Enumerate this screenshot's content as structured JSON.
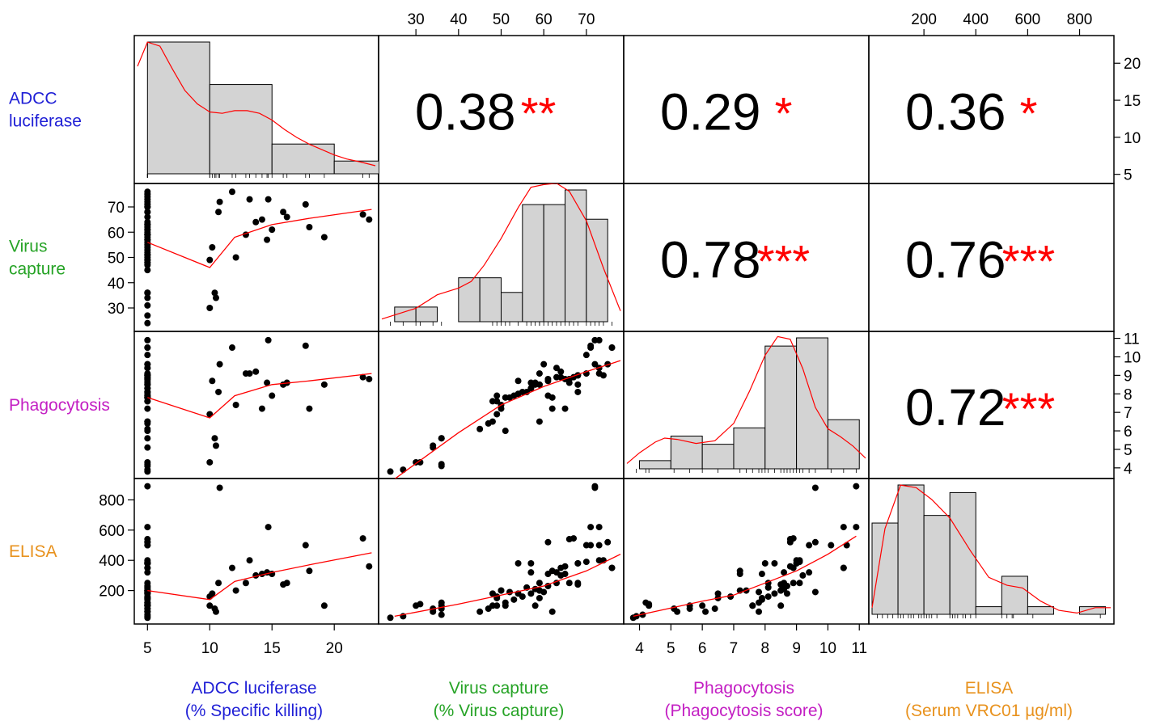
{
  "chart_data": {
    "type": "scatter",
    "title": "",
    "layout": "pairs-matrix",
    "variables": [
      {
        "key": "adcc",
        "row_label": [
          "ADCC",
          "luciferase"
        ],
        "axis_title": [
          "ADCC luciferase",
          "(% Specific killing)"
        ],
        "color": "#1f1fd6",
        "range": [
          4.2,
          23.3
        ],
        "ticks": [
          "5",
          "10",
          "15",
          "20"
        ],
        "tick_values": [
          5,
          10,
          15,
          20
        ]
      },
      {
        "key": "virus",
        "row_label": [
          "Virus",
          "capture"
        ],
        "axis_title": [
          "Virus capture",
          "(% Virus capture)"
        ],
        "color": "#26a326",
        "range": [
          22,
          78
        ],
        "ticks": [
          "30",
          "40",
          "50",
          "60",
          "70"
        ],
        "tick_values": [
          30,
          40,
          50,
          60,
          70
        ]
      },
      {
        "key": "phago",
        "row_label": [
          "Phagocytosis"
        ],
        "axis_title": [
          "Phagocytosis",
          "(Phagocytosis score)"
        ],
        "color": "#c31fc3",
        "range": [
          3.6,
          11.2
        ],
        "ticks": [
          "4",
          "5",
          "6",
          "7",
          "8",
          "9",
          "10",
          "11"
        ],
        "tick_values": [
          4,
          5,
          6,
          7,
          8,
          9,
          10,
          11
        ]
      },
      {
        "key": "elisa",
        "row_label": [
          "ELISA"
        ],
        "axis_title": [
          "ELISA",
          "(Serum VRC01 µg/ml)"
        ],
        "color": "#e8921e",
        "range": [
          0,
          920
        ],
        "ticks": [
          "200",
          "400",
          "600",
          "800"
        ],
        "tick_values": [
          200,
          400,
          600,
          800
        ]
      }
    ],
    "correlations": [
      {
        "row": 0,
        "col": 1,
        "r": "0.38",
        "stars": "**"
      },
      {
        "row": 0,
        "col": 2,
        "r": "0.29",
        "stars": "*"
      },
      {
        "row": 0,
        "col": 3,
        "r": "0.36",
        "stars": "*"
      },
      {
        "row": 1,
        "col": 2,
        "r": "0.78",
        "stars": "***"
      },
      {
        "row": 1,
        "col": 3,
        "r": "0.76",
        "stars": "***"
      },
      {
        "row": 2,
        "col": 3,
        "r": "0.72",
        "stars": "***"
      }
    ],
    "histograms": {
      "adcc": {
        "edges": [
          5,
          10,
          15,
          20,
          25
        ],
        "counts": [
          31,
          21,
          7,
          3
        ]
      },
      "virus": {
        "edges": [
          25,
          30,
          35,
          40,
          45,
          50,
          55,
          60,
          65,
          70,
          75,
          80
        ],
        "counts": [
          1,
          1,
          0,
          3,
          3,
          2,
          8,
          8,
          9,
          7,
          0
        ]
      },
      "phago": {
        "edges": [
          4,
          5,
          6,
          7,
          8,
          9,
          10,
          11
        ],
        "counts": [
          1,
          4,
          3,
          5,
          15,
          16,
          6
        ]
      },
      "elisa": {
        "edges": [
          0,
          100,
          200,
          300,
          400,
          500,
          600,
          700,
          800,
          900
        ],
        "counts": [
          12,
          17,
          13,
          16,
          1,
          5,
          1,
          0,
          1
        ]
      }
    },
    "points": [
      {
        "adcc": 5,
        "virus": 75,
        "phago": 9.6,
        "elisa": 520
      },
      {
        "adcc": 5,
        "virus": 73,
        "phago": 9.4,
        "elisa": 500
      },
      {
        "adcc": 5,
        "virus": 70,
        "phago": 9.1,
        "elisa": 390
      },
      {
        "adcc": 5,
        "virus": 68,
        "phago": 9.0,
        "elisa": 380
      },
      {
        "adcc": 5,
        "virus": 63,
        "phago": 8.9,
        "elisa": 250
      },
      {
        "adcc": 5,
        "virus": 61,
        "phago": 8.7,
        "elisa": 230
      },
      {
        "adcc": 5,
        "virus": 59,
        "phago": 8.5,
        "elisa": 200
      },
      {
        "adcc": 5,
        "virus": 57,
        "phago": 8.3,
        "elisa": 180
      },
      {
        "adcc": 5,
        "virus": 55,
        "phago": 8.1,
        "elisa": 160
      },
      {
        "adcc": 5,
        "virus": 53,
        "phago": 7.9,
        "elisa": 140
      },
      {
        "adcc": 5,
        "virus": 51,
        "phago": 7.8,
        "elisa": 120
      },
      {
        "adcc": 5,
        "virus": 49,
        "phago": 7.6,
        "elisa": 100
      },
      {
        "adcc": 5,
        "virus": 47,
        "phago": 6.4,
        "elisa": 80
      },
      {
        "adcc": 5,
        "virus": 45,
        "phago": 6.1,
        "elisa": 60
      },
      {
        "adcc": 5,
        "virus": 36,
        "phago": 4.1,
        "elisa": 40
      },
      {
        "adcc": 5,
        "virus": 24,
        "phago": 3.8,
        "elisa": 20
      },
      {
        "adcc": 10,
        "virus": 49,
        "phago": 6.9,
        "elisa": 160
      },
      {
        "adcc": 10,
        "virus": 30,
        "phago": 4.3,
        "elisa": 100
      },
      {
        "adcc": 10.2,
        "virus": 54,
        "phago": 8.7,
        "elisa": 180
      },
      {
        "adcc": 10.4,
        "virus": 36,
        "phago": 5.6,
        "elisa": 80
      },
      {
        "adcc": 10.5,
        "virus": 34,
        "phago": 5.2,
        "elisa": 60
      },
      {
        "adcc": 10.7,
        "virus": 68,
        "phago": 8.1,
        "elisa": 250
      },
      {
        "adcc": 10.8,
        "virus": 72,
        "phago": 9.6,
        "elisa": 880
      },
      {
        "adcc": 11.8,
        "virus": 76,
        "phago": 10.5,
        "elisa": 350
      },
      {
        "adcc": 12.1,
        "virus": 50,
        "phago": 7.4,
        "elisa": 200
      },
      {
        "adcc": 12.9,
        "virus": 59,
        "phago": 9.1,
        "elisa": 250
      },
      {
        "adcc": 13.2,
        "virus": 73,
        "phago": 9.1,
        "elisa": 400
      },
      {
        "adcc": 13.7,
        "virus": 64,
        "phago": 9.2,
        "elisa": 300
      },
      {
        "adcc": 14.2,
        "virus": 65,
        "phago": 7.2,
        "elisa": 310
      },
      {
        "adcc": 14.7,
        "virus": 73,
        "phago": 10.9,
        "elisa": 620
      },
      {
        "adcc": 14.6,
        "virus": 57,
        "phago": 8.6,
        "elisa": 320
      },
      {
        "adcc": 15.0,
        "virus": 61,
        "phago": 7.9,
        "elisa": 310
      },
      {
        "adcc": 15.9,
        "virus": 68,
        "phago": 8.5,
        "elisa": 240
      },
      {
        "adcc": 16.2,
        "virus": 66,
        "phago": 8.6,
        "elisa": 250
      },
      {
        "adcc": 17.7,
        "virus": 71,
        "phago": 10.6,
        "elisa": 500
      },
      {
        "adcc": 18.0,
        "virus": 62,
        "phago": 7.2,
        "elisa": 330
      },
      {
        "adcc": 19.2,
        "virus": 58,
        "phago": 8.5,
        "elisa": 100
      },
      {
        "adcc": 22.3,
        "virus": 67,
        "phago": 8.9,
        "elisa": 545
      },
      {
        "adcc": 22.8,
        "virus": 65,
        "phago": 8.8,
        "elisa": 360
      },
      {
        "adcc": 5,
        "virus": 27,
        "phago": 3.9,
        "elisa": 30
      },
      {
        "adcc": 5,
        "virus": 31,
        "phago": 4.3,
        "elisa": 110
      },
      {
        "adcc": 5,
        "virus": 34,
        "phago": 5.1,
        "elisa": 80
      },
      {
        "adcc": 5,
        "virus": 36,
        "phago": 4.2,
        "elisa": 120
      },
      {
        "adcc": 5,
        "virus": 36,
        "phago": 5.6,
        "elisa": 100
      },
      {
        "adcc": 5,
        "virus": 48,
        "phago": 7.6,
        "elisa": 100
      },
      {
        "adcc": 5,
        "virus": 48,
        "phago": 6.5,
        "elisa": 180
      },
      {
        "adcc": 5,
        "virus": 49,
        "phago": 7.9,
        "elisa": 150
      },
      {
        "adcc": 5,
        "virus": 50,
        "phago": 7.2,
        "elisa": 200
      },
      {
        "adcc": 5,
        "virus": 51,
        "phago": 6.0,
        "elisa": 100
      },
      {
        "adcc": 5,
        "virus": 52,
        "phago": 7.8,
        "elisa": 190
      },
      {
        "adcc": 5,
        "virus": 54,
        "phago": 8.0,
        "elisa": 380
      },
      {
        "adcc": 5,
        "virus": 56,
        "phago": 8.1,
        "elisa": 220
      },
      {
        "adcc": 5,
        "virus": 57,
        "phago": 8.3,
        "elisa": 380
      },
      {
        "adcc": 5,
        "virus": 58,
        "phago": 8.6,
        "elisa": 210
      },
      {
        "adcc": 5,
        "virus": 59,
        "phago": 6.5,
        "elisa": 150
      },
      {
        "adcc": 5,
        "virus": 59,
        "phago": 8.5,
        "elisa": 200
      },
      {
        "adcc": 5,
        "virus": 60,
        "phago": 9.6,
        "elisa": 190
      },
      {
        "adcc": 5,
        "virus": 61,
        "phago": 8.8,
        "elisa": 520
      },
      {
        "adcc": 5,
        "virus": 62,
        "phago": 7.8,
        "elisa": 60
      },
      {
        "adcc": 5,
        "virus": 63,
        "phago": 9.4,
        "elisa": 320
      },
      {
        "adcc": 5,
        "virus": 64,
        "phago": 8.9,
        "elisa": 350
      },
      {
        "adcc": 5,
        "virus": 66,
        "phago": 8.8,
        "elisa": 540
      },
      {
        "adcc": 5,
        "virus": 68,
        "phago": 9.0,
        "elisa": 380
      },
      {
        "adcc": 5,
        "virus": 70,
        "phago": 10.1,
        "elisa": 500
      },
      {
        "adcc": 5,
        "virus": 71,
        "phago": 10.5,
        "elisa": 620
      },
      {
        "adcc": 5,
        "virus": 72,
        "phago": 10.9,
        "elisa": 890
      },
      {
        "adcc": 5,
        "virus": 74,
        "phago": 9.0,
        "elisa": 400
      },
      {
        "adcc": 5,
        "virus": 76,
        "phago": 10.5,
        "elisa": 350
      }
    ],
    "smooth_lines": {
      "1_0": [
        [
          5,
          56
        ],
        [
          10,
          46
        ],
        [
          12,
          58
        ],
        [
          15,
          63
        ],
        [
          18,
          65.5
        ],
        [
          23,
          69
        ]
      ],
      "2_0": [
        [
          5,
          7.8
        ],
        [
          10,
          6.7
        ],
        [
          12,
          7.9
        ],
        [
          15,
          8.5
        ],
        [
          18,
          8.7
        ],
        [
          23,
          9.1
        ]
      ],
      "3_0": [
        [
          5,
          200
        ],
        [
          10,
          140
        ],
        [
          12,
          260
        ],
        [
          15,
          320
        ],
        [
          18,
          370
        ],
        [
          23,
          450
        ]
      ],
      "2_1": [
        [
          25,
          3.4
        ],
        [
          40,
          5.9
        ],
        [
          50,
          7.4
        ],
        [
          60,
          8.4
        ],
        [
          70,
          9.2
        ],
        [
          78,
          9.8
        ]
      ],
      "3_1": [
        [
          25,
          30
        ],
        [
          40,
          110
        ],
        [
          50,
          170
        ],
        [
          60,
          230
        ],
        [
          70,
          330
        ],
        [
          78,
          440
        ]
      ],
      "3_2": [
        [
          3.8,
          30
        ],
        [
          6,
          130
        ],
        [
          7,
          170
        ],
        [
          8,
          250
        ],
        [
          9,
          330
        ],
        [
          10,
          440
        ],
        [
          10.9,
          560
        ]
      ]
    },
    "densities": {
      "adcc": [
        [
          4.2,
          0.8
        ],
        [
          5,
          0.98
        ],
        [
          6,
          0.95
        ],
        [
          7,
          0.78
        ],
        [
          8,
          0.62
        ],
        [
          9,
          0.52
        ],
        [
          10,
          0.46
        ],
        [
          11,
          0.45
        ],
        [
          12,
          0.47
        ],
        [
          13,
          0.47
        ],
        [
          14,
          0.45
        ],
        [
          15,
          0.4
        ],
        [
          16,
          0.33
        ],
        [
          17,
          0.27
        ],
        [
          18,
          0.22
        ],
        [
          19,
          0.18
        ],
        [
          20,
          0.14
        ],
        [
          21,
          0.11
        ],
        [
          22,
          0.09
        ],
        [
          23.3,
          0.06
        ]
      ],
      "virus": [
        [
          22,
          0.02
        ],
        [
          25,
          0.05
        ],
        [
          30,
          0.1
        ],
        [
          35,
          0.2
        ],
        [
          40,
          0.25
        ],
        [
          43,
          0.3
        ],
        [
          46,
          0.42
        ],
        [
          50,
          0.62
        ],
        [
          54,
          0.85
        ],
        [
          57,
          1.0
        ],
        [
          60,
          1.02
        ],
        [
          63,
          1.03
        ],
        [
          66,
          0.97
        ],
        [
          70,
          0.75
        ],
        [
          74,
          0.4
        ],
        [
          78,
          0.08
        ]
      ],
      "phago": [
        [
          3.6,
          0.04
        ],
        [
          4,
          0.12
        ],
        [
          4.5,
          0.2
        ],
        [
          4.8,
          0.23
        ],
        [
          5.2,
          0.22
        ],
        [
          5.8,
          0.19
        ],
        [
          6.4,
          0.21
        ],
        [
          7,
          0.34
        ],
        [
          7.5,
          0.58
        ],
        [
          8,
          0.85
        ],
        [
          8.4,
          0.99
        ],
        [
          8.8,
          0.97
        ],
        [
          9.2,
          0.75
        ],
        [
          9.6,
          0.46
        ],
        [
          10,
          0.3
        ],
        [
          10.4,
          0.24
        ],
        [
          10.8,
          0.17
        ],
        [
          11.2,
          0.08
        ]
      ],
      "elisa": [
        [
          0,
          0.05
        ],
        [
          50,
          0.65
        ],
        [
          110,
          0.98
        ],
        [
          170,
          0.96
        ],
        [
          230,
          0.87
        ],
        [
          300,
          0.73
        ],
        [
          380,
          0.48
        ],
        [
          450,
          0.28
        ],
        [
          520,
          0.22
        ],
        [
          580,
          0.2
        ],
        [
          650,
          0.1
        ],
        [
          720,
          0.03
        ],
        [
          790,
          0.01
        ],
        [
          860,
          0.05
        ],
        [
          920,
          0.05
        ]
      ]
    },
    "rugs": {
      "adcc": [
        5,
        5,
        5,
        5,
        5,
        10,
        10,
        10.2,
        10.4,
        10.5,
        10.7,
        10.8,
        11.8,
        12.1,
        12.9,
        13.2,
        13.7,
        14.2,
        14.6,
        14.7,
        15,
        15.9,
        16.2,
        17.7,
        18,
        19.2,
        22.3,
        22.8
      ],
      "virus": [
        24,
        27,
        30,
        31,
        34,
        36,
        48,
        49,
        50,
        51,
        52,
        54,
        56,
        57,
        58,
        59,
        59,
        60,
        61,
        62,
        63,
        64,
        65,
        66,
        67,
        68,
        70,
        71,
        72,
        73,
        74,
        76
      ],
      "phago": [
        3.9,
        4.2,
        4.3,
        5.1,
        5.6,
        6.0,
        6.5,
        7.2,
        7.4,
        7.6,
        7.8,
        7.9,
        8.0,
        8.1,
        8.3,
        8.5,
        8.6,
        8.7,
        8.8,
        8.9,
        9.0,
        9.1,
        9.2,
        9.4,
        9.6,
        10.1,
        10.5,
        10.9
      ],
      "elisa": [
        20,
        40,
        60,
        80,
        100,
        110,
        120,
        140,
        150,
        160,
        180,
        190,
        200,
        210,
        220,
        230,
        250,
        300,
        310,
        320,
        330,
        350,
        360,
        380,
        400,
        500,
        520,
        540,
        545,
        620,
        880
      ]
    }
  }
}
